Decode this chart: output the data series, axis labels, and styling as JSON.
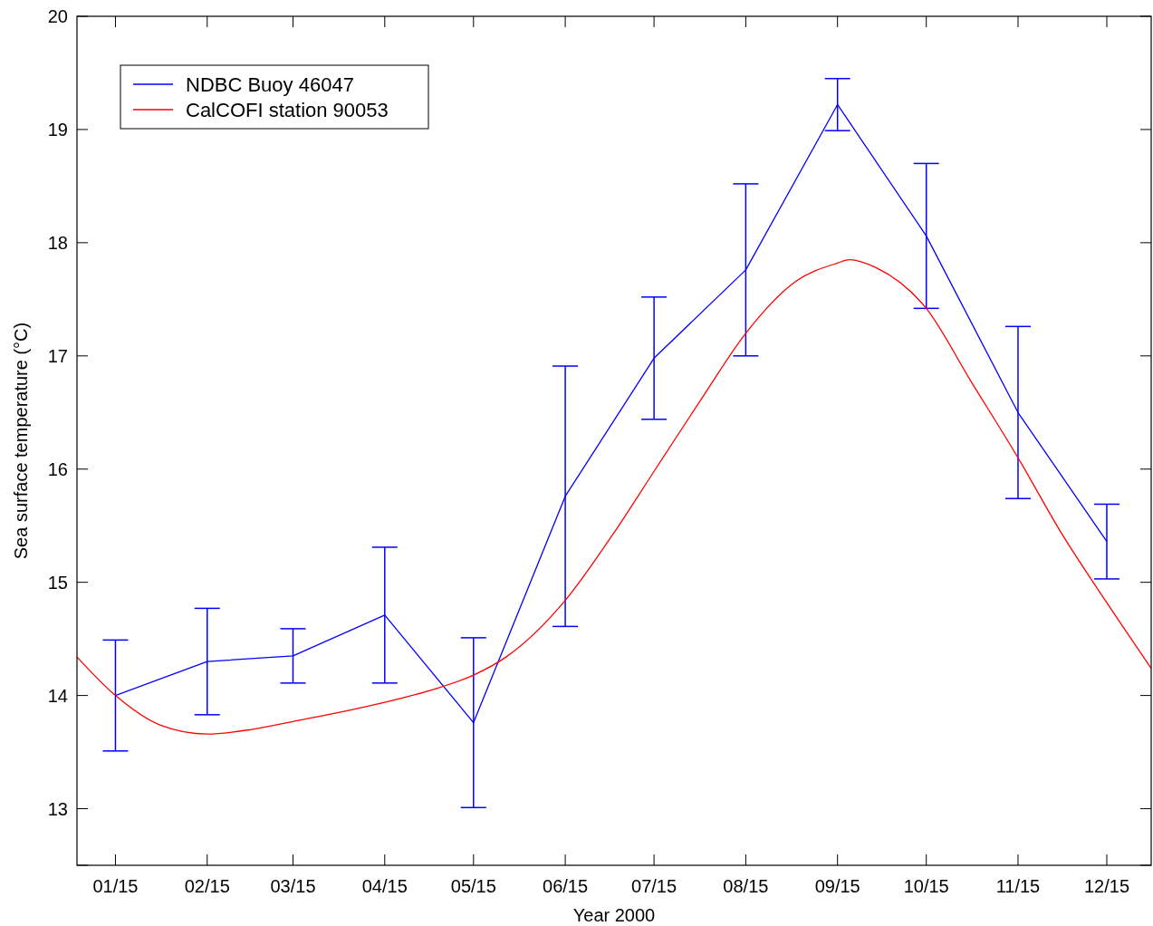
{
  "chart_data": {
    "type": "line",
    "xlabel": "Year 2000",
    "ylabel": "Sea surface temperature (°C)",
    "xlim": [
      "2000-01-02",
      "2000-12-30"
    ],
    "ylim": [
      12.5,
      20
    ],
    "xticks": [
      {
        "value": "2000-01-15",
        "label": "01/15"
      },
      {
        "value": "2000-02-15",
        "label": "02/15"
      },
      {
        "value": "2000-03-15",
        "label": "03/15"
      },
      {
        "value": "2000-04-15",
        "label": "04/15"
      },
      {
        "value": "2000-05-15",
        "label": "05/15"
      },
      {
        "value": "2000-06-15",
        "label": "06/15"
      },
      {
        "value": "2000-07-15",
        "label": "07/15"
      },
      {
        "value": "2000-08-15",
        "label": "08/15"
      },
      {
        "value": "2000-09-15",
        "label": "09/15"
      },
      {
        "value": "2000-10-15",
        "label": "10/15"
      },
      {
        "value": "2000-11-15",
        "label": "11/15"
      },
      {
        "value": "2000-12-15",
        "label": "12/15"
      }
    ],
    "yticks": [
      {
        "value": 12.5,
        "label": null
      },
      13,
      14,
      15,
      16,
      17,
      18,
      19,
      20
    ],
    "grid": false,
    "legend": "top left",
    "marker": "none",
    "line_style": "solid",
    "series": [
      {
        "name": "NDBC Buoy 46047",
        "color": "#0000ff",
        "x": [
          "2000-01-15",
          "2000-02-15",
          "2000-03-15",
          "2000-04-15",
          "2000-05-15",
          "2000-06-15",
          "2000-07-15",
          "2000-08-15",
          "2000-09-15",
          "2000-10-15",
          "2000-11-15",
          "2000-12-15"
        ],
        "values": [
          14.0,
          14.3,
          14.35,
          14.71,
          13.76,
          15.76,
          16.98,
          17.76,
          19.22,
          18.06,
          16.5,
          15.36
        ],
        "errors": [
          0.49,
          0.47,
          0.24,
          0.6,
          0.75,
          1.15,
          0.54,
          0.76,
          0.23,
          0.64,
          0.76,
          0.33
        ]
      },
      {
        "name": "CalCOFI station 90053",
        "color": "#ff0000",
        "x": [
          "2000-01-02",
          "2000-01-15",
          "2000-01-30",
          "2000-02-15",
          "2000-03-01",
          "2000-03-15",
          "2000-04-15",
          "2000-05-01",
          "2000-05-15",
          "2000-05-26",
          "2000-06-15",
          "2000-07-01",
          "2000-07-15",
          "2000-07-31",
          "2000-08-15",
          "2000-09-01",
          "2000-09-15",
          "2000-09-19",
          "2000-09-28",
          "2000-10-15",
          "2000-10-30",
          "2000-11-15",
          "2000-11-30",
          "2000-12-15",
          "2000-12-30"
        ],
        "values": [
          14.34,
          14.0,
          13.74,
          13.66,
          13.7,
          13.77,
          13.94,
          14.05,
          14.18,
          14.34,
          14.84,
          15.42,
          15.98,
          16.62,
          17.2,
          17.66,
          17.82,
          17.85,
          17.78,
          17.42,
          16.78,
          16.1,
          15.42,
          14.82,
          14.24
        ]
      }
    ]
  }
}
